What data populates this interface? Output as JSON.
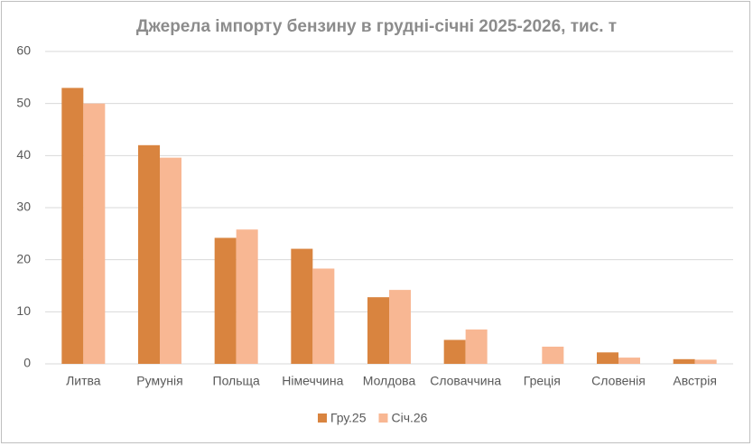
{
  "chart_data": {
    "type": "bar",
    "title": "Джерела імпорту бензину в грудні-січні 2025-2026, тис. т",
    "categories": [
      "Литва",
      "Румунія",
      "Польща",
      "Німеччина",
      "Молдова",
      "Словаччина",
      "Греція",
      "Словенія",
      "Австрія"
    ],
    "series": [
      {
        "name": "Гру.25",
        "color": "#d9843f",
        "values": [
          53,
          42,
          24.2,
          22.1,
          12.8,
          4.6,
          0,
          2.2,
          0.9
        ]
      },
      {
        "name": "Січ.26",
        "color": "#f8b793",
        "values": [
          50,
          39.6,
          25.8,
          18.3,
          14.2,
          6.6,
          3.3,
          1.2,
          0.8
        ]
      }
    ],
    "ylim": [
      0,
      60
    ],
    "yticks": [
      0,
      10,
      20,
      30,
      40,
      50,
      60
    ],
    "grid": true,
    "legend": "bottom"
  }
}
